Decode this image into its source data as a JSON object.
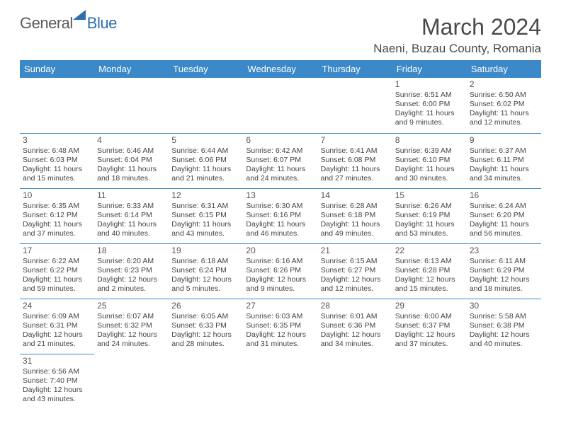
{
  "logo": {
    "part1": "General",
    "part2": "Blue"
  },
  "title": "March 2024",
  "location": "Naeni, Buzau County, Romania",
  "colors": {
    "header_bg": "#3b89c9",
    "header_text": "#ffffff",
    "cell_border": "#3b89c9",
    "text": "#444444",
    "logo_gray": "#5a5a5a",
    "logo_blue": "#2b6fb0",
    "background": "#ffffff"
  },
  "typography": {
    "title_fontsize": 32,
    "location_fontsize": 17,
    "header_fontsize": 13,
    "daynum_fontsize": 12,
    "body_fontsize": 10.5
  },
  "day_headers": [
    "Sunday",
    "Monday",
    "Tuesday",
    "Wednesday",
    "Thursday",
    "Friday",
    "Saturday"
  ],
  "weeks": [
    [
      null,
      null,
      null,
      null,
      null,
      {
        "n": "1",
        "sr": "Sunrise: 6:51 AM",
        "ss": "Sunset: 6:00 PM",
        "dl": "Daylight: 11 hours and 9 minutes."
      },
      {
        "n": "2",
        "sr": "Sunrise: 6:50 AM",
        "ss": "Sunset: 6:02 PM",
        "dl": "Daylight: 11 hours and 12 minutes."
      }
    ],
    [
      {
        "n": "3",
        "sr": "Sunrise: 6:48 AM",
        "ss": "Sunset: 6:03 PM",
        "dl": "Daylight: 11 hours and 15 minutes."
      },
      {
        "n": "4",
        "sr": "Sunrise: 6:46 AM",
        "ss": "Sunset: 6:04 PM",
        "dl": "Daylight: 11 hours and 18 minutes."
      },
      {
        "n": "5",
        "sr": "Sunrise: 6:44 AM",
        "ss": "Sunset: 6:06 PM",
        "dl": "Daylight: 11 hours and 21 minutes."
      },
      {
        "n": "6",
        "sr": "Sunrise: 6:42 AM",
        "ss": "Sunset: 6:07 PM",
        "dl": "Daylight: 11 hours and 24 minutes."
      },
      {
        "n": "7",
        "sr": "Sunrise: 6:41 AM",
        "ss": "Sunset: 6:08 PM",
        "dl": "Daylight: 11 hours and 27 minutes."
      },
      {
        "n": "8",
        "sr": "Sunrise: 6:39 AM",
        "ss": "Sunset: 6:10 PM",
        "dl": "Daylight: 11 hours and 30 minutes."
      },
      {
        "n": "9",
        "sr": "Sunrise: 6:37 AM",
        "ss": "Sunset: 6:11 PM",
        "dl": "Daylight: 11 hours and 34 minutes."
      }
    ],
    [
      {
        "n": "10",
        "sr": "Sunrise: 6:35 AM",
        "ss": "Sunset: 6:12 PM",
        "dl": "Daylight: 11 hours and 37 minutes."
      },
      {
        "n": "11",
        "sr": "Sunrise: 6:33 AM",
        "ss": "Sunset: 6:14 PM",
        "dl": "Daylight: 11 hours and 40 minutes."
      },
      {
        "n": "12",
        "sr": "Sunrise: 6:31 AM",
        "ss": "Sunset: 6:15 PM",
        "dl": "Daylight: 11 hours and 43 minutes."
      },
      {
        "n": "13",
        "sr": "Sunrise: 6:30 AM",
        "ss": "Sunset: 6:16 PM",
        "dl": "Daylight: 11 hours and 46 minutes."
      },
      {
        "n": "14",
        "sr": "Sunrise: 6:28 AM",
        "ss": "Sunset: 6:18 PM",
        "dl": "Daylight: 11 hours and 49 minutes."
      },
      {
        "n": "15",
        "sr": "Sunrise: 6:26 AM",
        "ss": "Sunset: 6:19 PM",
        "dl": "Daylight: 11 hours and 53 minutes."
      },
      {
        "n": "16",
        "sr": "Sunrise: 6:24 AM",
        "ss": "Sunset: 6:20 PM",
        "dl": "Daylight: 11 hours and 56 minutes."
      }
    ],
    [
      {
        "n": "17",
        "sr": "Sunrise: 6:22 AM",
        "ss": "Sunset: 6:22 PM",
        "dl": "Daylight: 11 hours and 59 minutes."
      },
      {
        "n": "18",
        "sr": "Sunrise: 6:20 AM",
        "ss": "Sunset: 6:23 PM",
        "dl": "Daylight: 12 hours and 2 minutes."
      },
      {
        "n": "19",
        "sr": "Sunrise: 6:18 AM",
        "ss": "Sunset: 6:24 PM",
        "dl": "Daylight: 12 hours and 5 minutes."
      },
      {
        "n": "20",
        "sr": "Sunrise: 6:16 AM",
        "ss": "Sunset: 6:26 PM",
        "dl": "Daylight: 12 hours and 9 minutes."
      },
      {
        "n": "21",
        "sr": "Sunrise: 6:15 AM",
        "ss": "Sunset: 6:27 PM",
        "dl": "Daylight: 12 hours and 12 minutes."
      },
      {
        "n": "22",
        "sr": "Sunrise: 6:13 AM",
        "ss": "Sunset: 6:28 PM",
        "dl": "Daylight: 12 hours and 15 minutes."
      },
      {
        "n": "23",
        "sr": "Sunrise: 6:11 AM",
        "ss": "Sunset: 6:29 PM",
        "dl": "Daylight: 12 hours and 18 minutes."
      }
    ],
    [
      {
        "n": "24",
        "sr": "Sunrise: 6:09 AM",
        "ss": "Sunset: 6:31 PM",
        "dl": "Daylight: 12 hours and 21 minutes."
      },
      {
        "n": "25",
        "sr": "Sunrise: 6:07 AM",
        "ss": "Sunset: 6:32 PM",
        "dl": "Daylight: 12 hours and 24 minutes."
      },
      {
        "n": "26",
        "sr": "Sunrise: 6:05 AM",
        "ss": "Sunset: 6:33 PM",
        "dl": "Daylight: 12 hours and 28 minutes."
      },
      {
        "n": "27",
        "sr": "Sunrise: 6:03 AM",
        "ss": "Sunset: 6:35 PM",
        "dl": "Daylight: 12 hours and 31 minutes."
      },
      {
        "n": "28",
        "sr": "Sunrise: 6:01 AM",
        "ss": "Sunset: 6:36 PM",
        "dl": "Daylight: 12 hours and 34 minutes."
      },
      {
        "n": "29",
        "sr": "Sunrise: 6:00 AM",
        "ss": "Sunset: 6:37 PM",
        "dl": "Daylight: 12 hours and 37 minutes."
      },
      {
        "n": "30",
        "sr": "Sunrise: 5:58 AM",
        "ss": "Sunset: 6:38 PM",
        "dl": "Daylight: 12 hours and 40 minutes."
      }
    ],
    [
      {
        "n": "31",
        "sr": "Sunrise: 6:56 AM",
        "ss": "Sunset: 7:40 PM",
        "dl": "Daylight: 12 hours and 43 minutes."
      },
      null,
      null,
      null,
      null,
      null,
      null
    ]
  ]
}
